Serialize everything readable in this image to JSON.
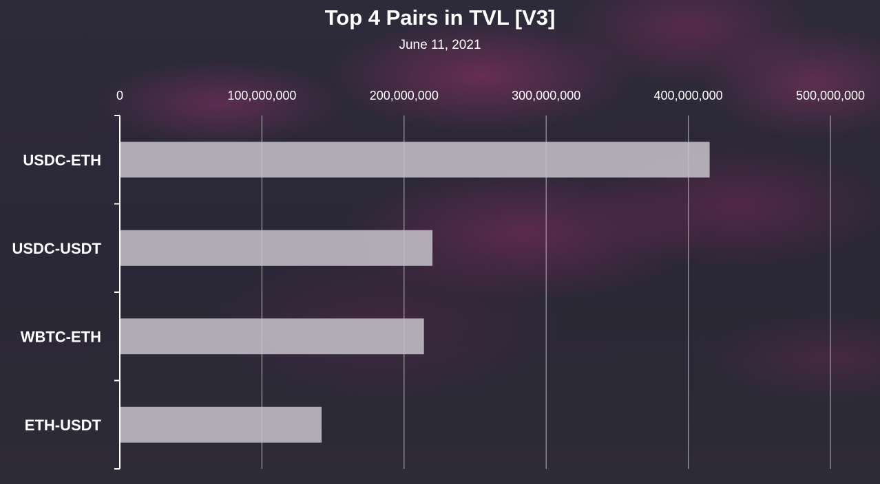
{
  "header": {
    "title": "Top 4 Pairs in TVL [V3]",
    "subtitle": "June 11, 2021"
  },
  "colors": {
    "bar": "#c6c3cb",
    "grid": "#bdbac4",
    "axis": "#ffffff",
    "text": "#ffffff"
  },
  "chart_data": {
    "type": "bar",
    "orientation": "horizontal",
    "title": "Top 4 Pairs in TVL [V3]",
    "subtitle": "June 11, 2021",
    "xlabel": "",
    "ylabel": "",
    "categories": [
      "USDC-ETH",
      "USDC-USDT",
      "WBTC-ETH",
      "ETH-USDT"
    ],
    "values": [
      415000000,
      220000000,
      214000000,
      142000000
    ],
    "xlim": [
      0,
      500000000
    ],
    "ticks": [
      0,
      100000000,
      200000000,
      300000000,
      400000000,
      500000000
    ],
    "tick_labels": [
      "0",
      "100,000,000",
      "200,000,000",
      "300,000,000",
      "400,000,000",
      "500,000,000"
    ],
    "x_axis_position": "top",
    "grid": true,
    "legend": "none"
  }
}
